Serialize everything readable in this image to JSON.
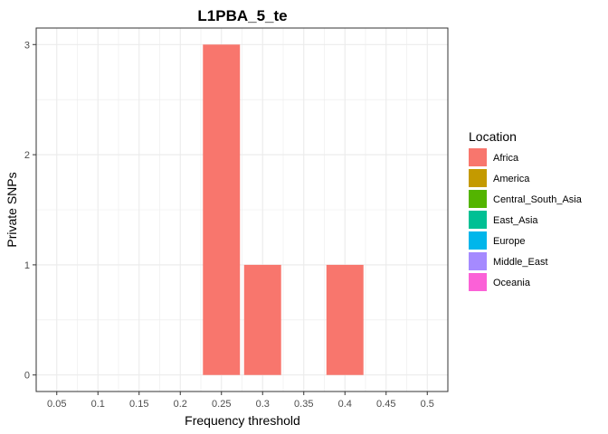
{
  "chart_data": {
    "type": "bar",
    "title": "L1PBA_5_te",
    "xlabel": "Frequency threshold",
    "ylabel": "Private SNPs",
    "x_ticks": [
      "0.05",
      "0.1",
      "0.15",
      "0.2",
      "0.25",
      "0.3",
      "0.35",
      "0.4",
      "0.45",
      "0.5"
    ],
    "y_ticks": [
      "0",
      "1",
      "2",
      "3"
    ],
    "xlim": [
      0.025,
      0.525
    ],
    "ylim": [
      -0.15,
      3.15
    ],
    "grid": true,
    "legend": {
      "title": "Location",
      "position": "right",
      "entries": [
        {
          "name": "Africa",
          "color": "#F8766D"
        },
        {
          "name": "America",
          "color": "#C49A00"
        },
        {
          "name": "Central_South_Asia",
          "color": "#53B400"
        },
        {
          "name": "East_Asia",
          "color": "#00C094"
        },
        {
          "name": "Europe",
          "color": "#00B6EB"
        },
        {
          "name": "Middle_East",
          "color": "#A58AFF"
        },
        {
          "name": "Oceania",
          "color": "#FB61D7"
        }
      ]
    },
    "series": [
      {
        "name": "Africa",
        "color": "#F8766D",
        "points": [
          {
            "x": 0.25,
            "y": 3
          },
          {
            "x": 0.3,
            "y": 1
          },
          {
            "x": 0.4,
            "y": 1
          }
        ]
      }
    ]
  }
}
